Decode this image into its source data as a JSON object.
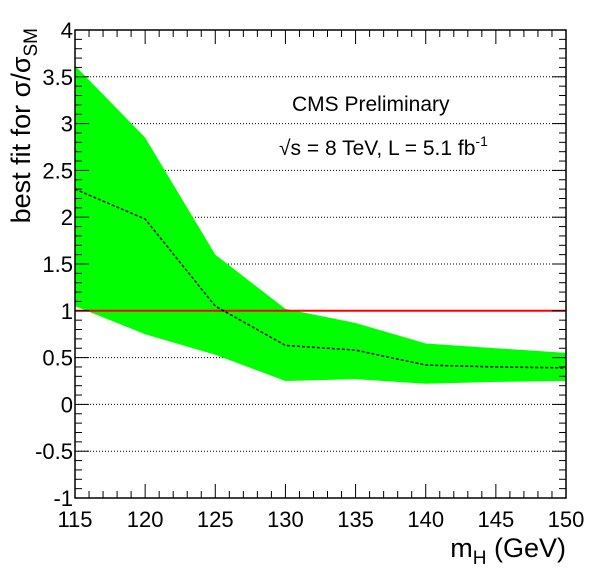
{
  "chart_data": {
    "type": "line",
    "title": "",
    "xlabel": "m_H (GeV)",
    "ylabel": "best fit for σ/σ_SM",
    "xlim": [
      115,
      150
    ],
    "ylim": [
      -1,
      4
    ],
    "grid_y": true,
    "grid_y_values": [
      -0.5,
      0,
      0.5,
      1,
      1.5,
      2,
      2.5,
      3,
      3.5
    ],
    "x_ticks": [
      115,
      120,
      125,
      130,
      135,
      140,
      145,
      150
    ],
    "y_ticks": [
      -1,
      -0.5,
      0,
      0.5,
      1,
      1.5,
      2,
      2.5,
      3,
      3.5,
      4
    ],
    "x_tick_labels": [
      "115",
      "120",
      "125",
      "130",
      "135",
      "140",
      "145",
      "150"
    ],
    "y_tick_labels": [
      "-1",
      "-0.5",
      "0",
      "0.5",
      "1",
      "1.5",
      "2",
      "2.5",
      "3",
      "3.5",
      "4"
    ],
    "band": {
      "color": "#00ff00",
      "x": [
        115,
        120,
        125,
        130,
        135,
        140,
        145,
        150
      ],
      "upper": [
        3.62,
        2.85,
        1.6,
        1.02,
        0.87,
        0.65,
        0.6,
        0.55
      ],
      "lower": [
        1.05,
        0.75,
        0.53,
        0.25,
        0.27,
        0.22,
        0.24,
        0.25
      ]
    },
    "series": [
      {
        "style": "dashed",
        "color": "#000000",
        "x": [
          115,
          120,
          125,
          130,
          135,
          140,
          145,
          150
        ],
        "y": [
          2.3,
          1.98,
          1.05,
          0.63,
          0.58,
          0.42,
          0.4,
          0.39
        ]
      }
    ],
    "reference_line": {
      "y": 1,
      "color": "#ff0000"
    },
    "annotations": {
      "experiment": "CMS Preliminary",
      "sqrt_symbol": "√",
      "energy_text": "s = 8 TeV, L = 5.1 fb",
      "lumi_exponent": "-1"
    },
    "axis_title_parts": {
      "x_main": "m",
      "x_sub": "H",
      "x_rest": " (GeV)",
      "y_main": "best fit for σ/σ",
      "y_sub": "SM"
    }
  }
}
